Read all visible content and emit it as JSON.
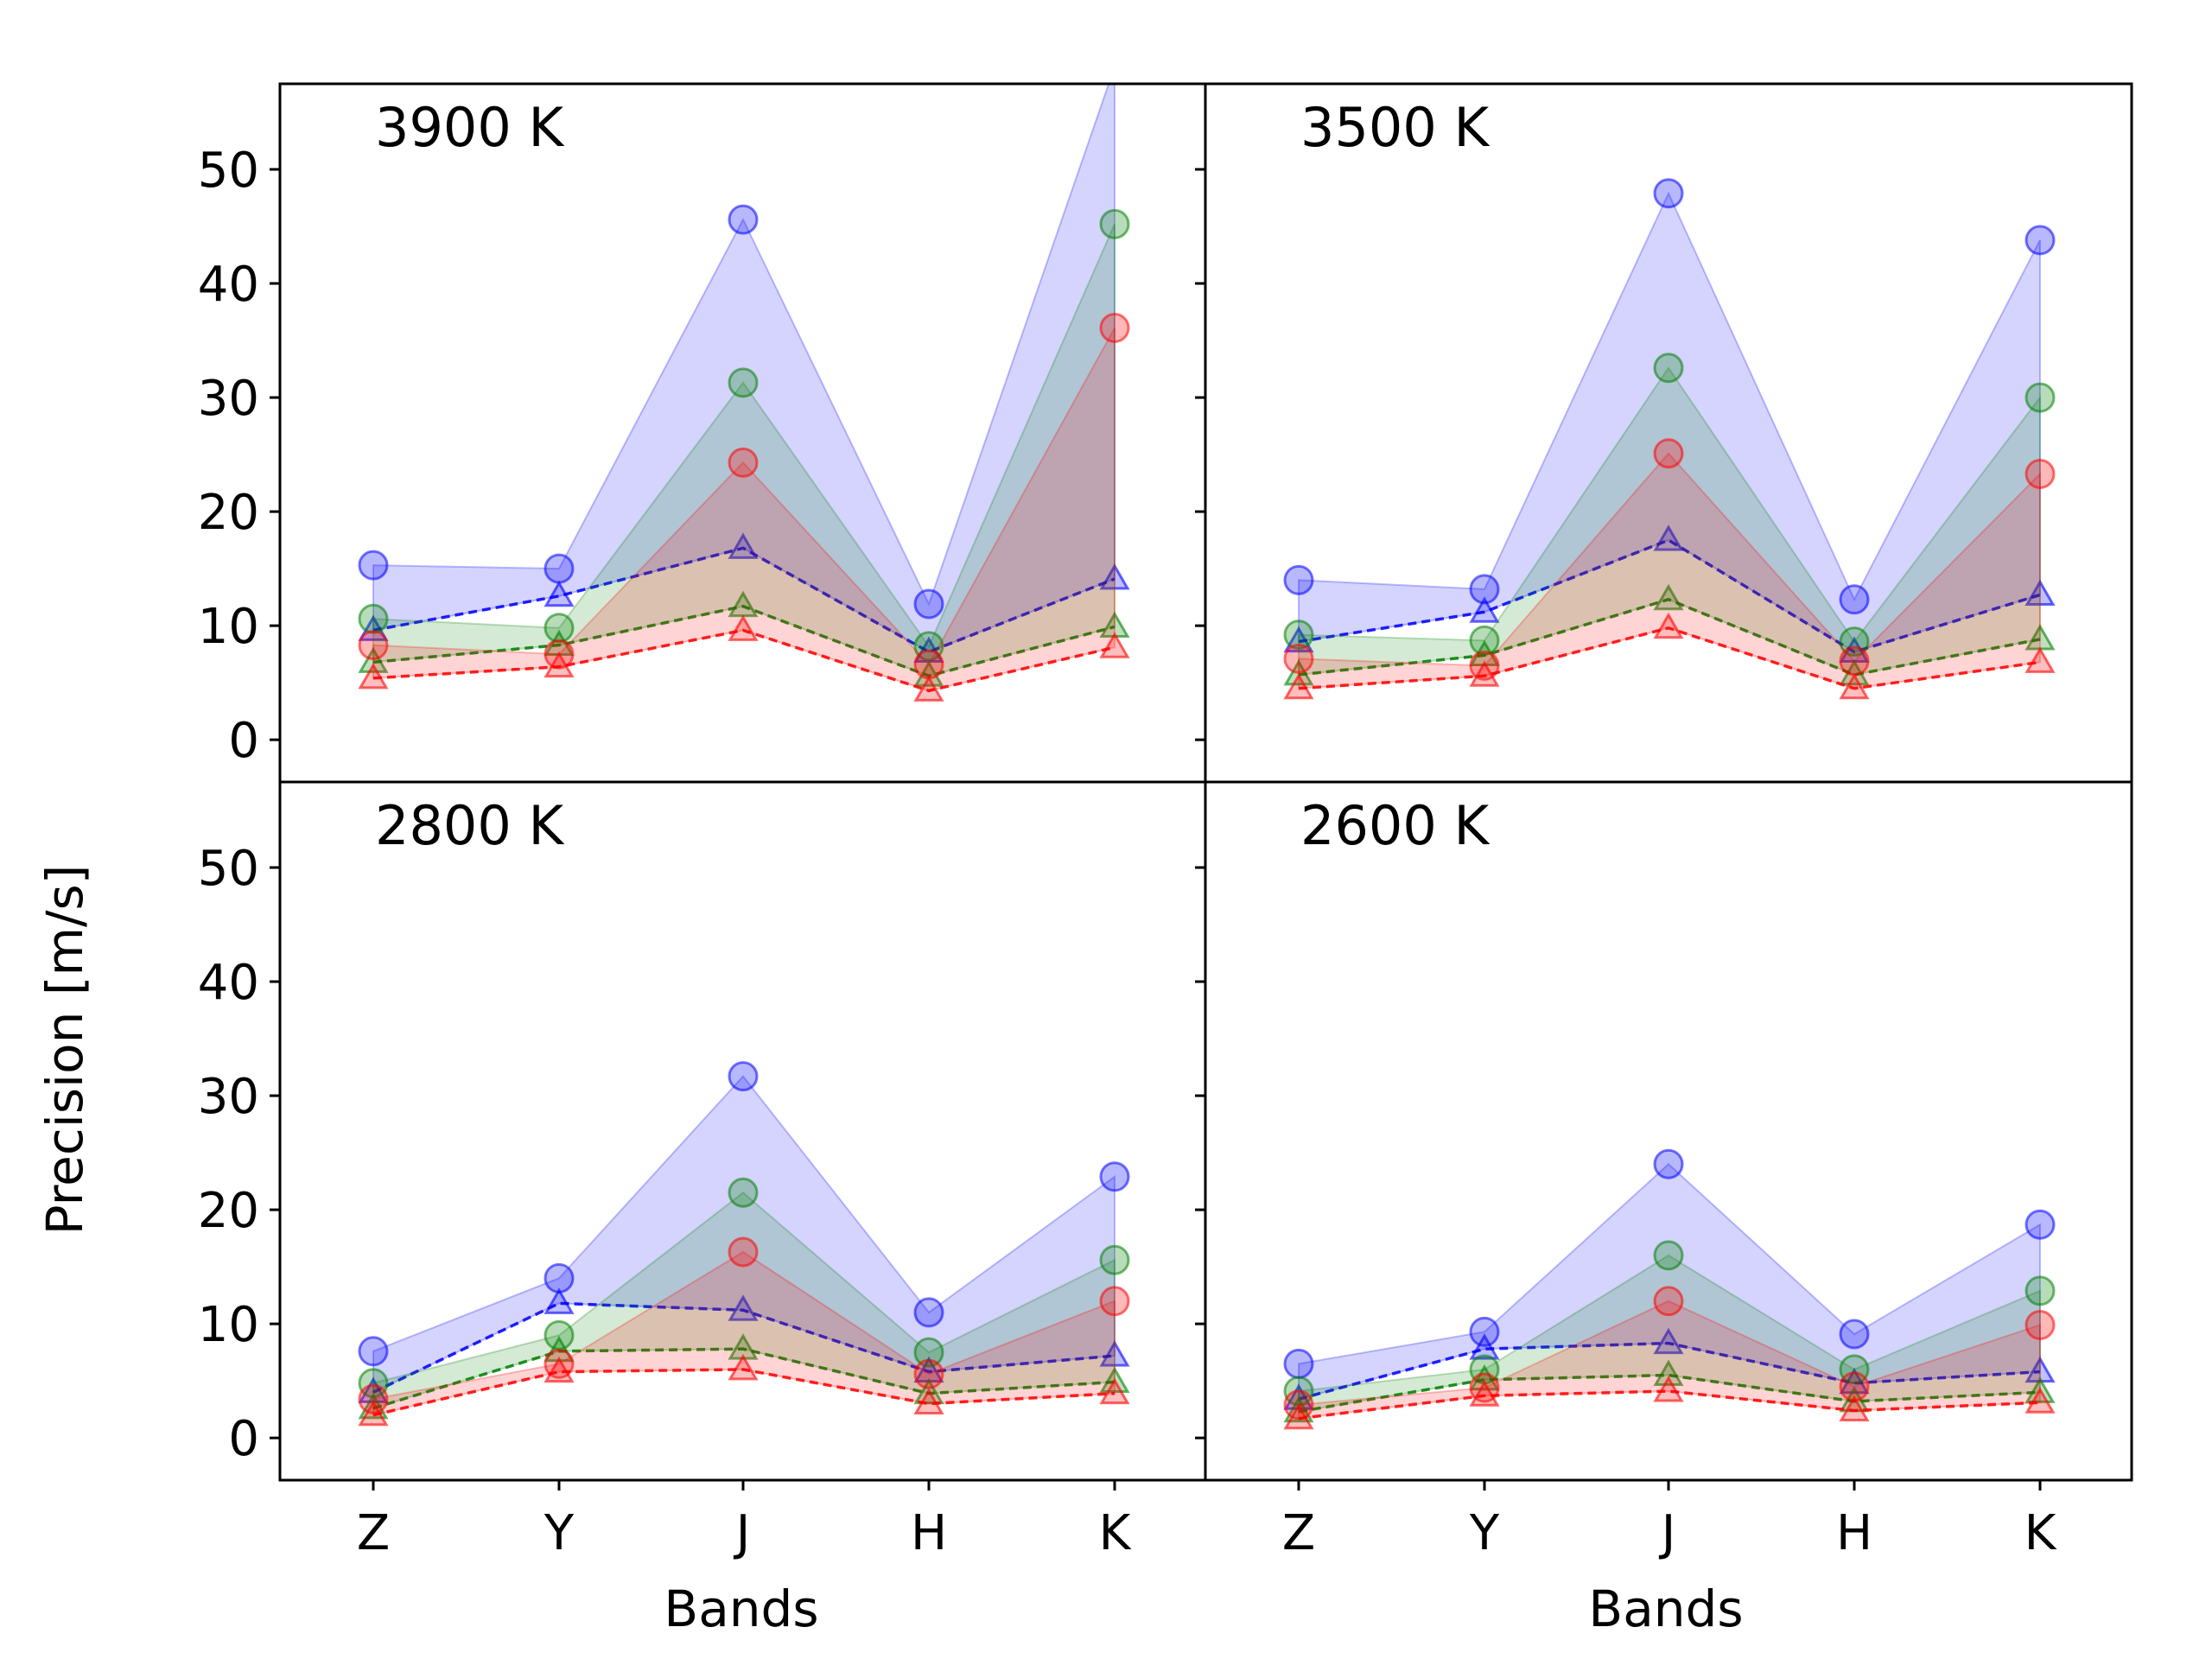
{
  "figure": {
    "ylabel": "Precision [m/s]",
    "xlabel": "Bands"
  },
  "chart_data": [
    {
      "type": "line",
      "panel_label": "3900 K",
      "categories": [
        "Z",
        "Y",
        "J",
        "H",
        "K"
      ],
      "ylim": [
        -3.7,
        57.5
      ],
      "yticks": [
        0,
        10,
        20,
        30,
        40,
        50
      ],
      "grid": false,
      "series": [
        {
          "color": "#0000ff",
          "circles": [
            15.3,
            15.0,
            45.6,
            11.9,
            59.0
          ],
          "triangles": [
            9.6,
            12.6,
            16.8,
            7.7,
            14.1
          ]
        },
        {
          "color": "#008000",
          "circles": [
            10.6,
            9.8,
            31.3,
            8.2,
            45.2
          ],
          "triangles": [
            6.8,
            8.3,
            11.7,
            5.6,
            9.9
          ]
        },
        {
          "color": "#ff0000",
          "circles": [
            8.3,
            7.5,
            24.3,
            6.6,
            36.1
          ],
          "triangles": [
            5.4,
            6.4,
            9.6,
            4.3,
            8.1
          ]
        }
      ]
    },
    {
      "type": "line",
      "panel_label": "3500 K",
      "categories": [
        "Z",
        "Y",
        "J",
        "H",
        "K"
      ],
      "ylim": [
        -3.7,
        57.5
      ],
      "yticks": [
        0,
        10,
        20,
        30,
        40,
        50
      ],
      "grid": false,
      "series": [
        {
          "color": "#0000ff",
          "circles": [
            14.0,
            13.2,
            47.9,
            12.3,
            43.8
          ],
          "triangles": [
            8.6,
            11.2,
            17.5,
            7.7,
            12.7
          ]
        },
        {
          "color": "#008000",
          "circles": [
            9.2,
            8.7,
            32.6,
            8.6,
            30.0
          ],
          "triangles": [
            5.7,
            7.4,
            12.3,
            5.7,
            8.8
          ]
        },
        {
          "color": "#ff0000",
          "circles": [
            7.1,
            6.5,
            25.1,
            6.9,
            23.3
          ],
          "triangles": [
            4.5,
            5.6,
            9.8,
            4.5,
            6.8
          ]
        }
      ]
    },
    {
      "type": "line",
      "panel_label": "2800 K",
      "categories": [
        "Z",
        "Y",
        "J",
        "H",
        "K"
      ],
      "ylim": [
        -3.7,
        57.5
      ],
      "yticks": [
        0,
        10,
        20,
        30,
        40,
        50
      ],
      "grid": false,
      "series": [
        {
          "color": "#0000ff",
          "circles": [
            7.6,
            14.0,
            31.7,
            11.0,
            22.9
          ],
          "triangles": [
            4.0,
            11.8,
            11.2,
            5.8,
            7.2
          ]
        },
        {
          "color": "#008000",
          "circles": [
            4.8,
            9.0,
            21.5,
            7.5,
            15.6
          ],
          "triangles": [
            2.6,
            7.6,
            7.8,
            3.9,
            4.9
          ]
        },
        {
          "color": "#ff0000",
          "circles": [
            3.4,
            6.5,
            16.3,
            5.6,
            12.0
          ],
          "triangles": [
            2.0,
            5.8,
            6.0,
            3.0,
            3.9
          ]
        }
      ]
    },
    {
      "type": "line",
      "panel_label": "2600 K",
      "categories": [
        "Z",
        "Y",
        "J",
        "H",
        "K"
      ],
      "ylim": [
        -3.7,
        57.5
      ],
      "yticks": [
        0,
        10,
        20,
        30,
        40,
        50
      ],
      "grid": false,
      "series": [
        {
          "color": "#0000ff",
          "circles": [
            6.5,
            9.3,
            24.0,
            9.1,
            18.7
          ],
          "triangles": [
            3.4,
            7.8,
            8.3,
            4.8,
            5.8
          ]
        },
        {
          "color": "#008000",
          "circles": [
            4.1,
            6.0,
            16.0,
            6.0,
            12.9
          ],
          "triangles": [
            2.3,
            5.1,
            5.5,
            3.2,
            4.0
          ]
        },
        {
          "color": "#ff0000",
          "circles": [
            2.9,
            4.4,
            12.0,
            4.5,
            9.9
          ],
          "triangles": [
            1.7,
            3.7,
            4.1,
            2.4,
            3.1
          ]
        }
      ]
    }
  ]
}
